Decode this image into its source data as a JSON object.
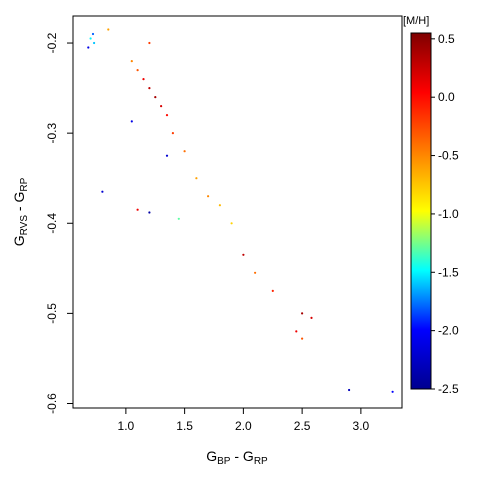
{
  "chart_data": {
    "type": "scatter",
    "xlabel": {
      "main": "G",
      "sub1": "BP",
      "mid": " - G",
      "sub2": "RP"
    },
    "ylabel": {
      "main": "G",
      "sub1": "RVS",
      "mid": " - G",
      "sub2": "RP"
    },
    "xlim": [
      0.55,
      3.35
    ],
    "ylim": [
      -0.605,
      -0.17
    ],
    "xticks": [
      1.0,
      1.5,
      2.0,
      2.5,
      3.0
    ],
    "xtick_labels": [
      "1.0",
      "1.5",
      "2.0",
      "2.5",
      "3.0"
    ],
    "yticks": [
      -0.6,
      -0.5,
      -0.4,
      -0.3,
      -0.2
    ],
    "ytick_labels": [
      "-0.6",
      "-0.5",
      "-0.4",
      "-0.3",
      "-0.2"
    ],
    "colorbar": {
      "title": "[M/H]",
      "min": -2.5,
      "max": 0.55,
      "ticks": [
        0.5,
        0.0,
        -0.5,
        -1.0,
        -1.5,
        -2.0,
        -2.5
      ],
      "tick_labels": [
        "0.5",
        "0.0",
        "-0.5",
        "-1.0",
        "-1.5",
        "-2.0",
        "-2.5"
      ],
      "colormap": [
        "#00008f",
        "#0000ff",
        "#00ffff",
        "#ffff00",
        "#ff7f00",
        "#ff0000",
        "#7f0000"
      ]
    },
    "grid": false,
    "points": [
      [
        1.2,
        -0.25,
        0.3
      ],
      [
        1.15,
        -0.24,
        0.1
      ],
      [
        1.25,
        -0.26,
        0.4
      ],
      [
        1.1,
        -0.23,
        -0.3
      ],
      [
        1.3,
        -0.27,
        0.2
      ],
      [
        1.05,
        -0.22,
        -0.5
      ],
      [
        1.35,
        -0.28,
        0.0
      ],
      [
        1.4,
        -0.3,
        -0.2
      ],
      [
        1.5,
        -0.32,
        -0.4
      ],
      [
        1.6,
        -0.35,
        -0.6
      ],
      [
        1.7,
        -0.37,
        -0.5
      ],
      [
        1.8,
        -0.38,
        -0.7
      ],
      [
        1.9,
        -0.4,
        -0.8
      ],
      [
        2.0,
        -0.435,
        0.3
      ],
      [
        2.1,
        -0.455,
        -0.4
      ],
      [
        2.25,
        -0.475,
        -0.1
      ],
      [
        2.5,
        -0.5,
        0.4
      ],
      [
        2.5,
        -0.528,
        -0.3
      ],
      [
        2.58,
        -0.505,
        0.2
      ],
      [
        2.45,
        -0.52,
        0.1
      ],
      [
        2.9,
        -0.585,
        -2.3
      ],
      [
        3.27,
        -0.587,
        -2.0
      ],
      [
        0.8,
        -0.365,
        -2.2
      ],
      [
        1.2,
        -0.388,
        -2.4
      ],
      [
        1.1,
        -0.385,
        0.1
      ],
      [
        1.05,
        -0.287,
        -2.1
      ],
      [
        1.35,
        -0.325,
        -2.2
      ],
      [
        0.73,
        -0.2,
        -1.6
      ],
      [
        0.7,
        -0.195,
        -1.5
      ],
      [
        0.68,
        -0.205,
        -2.1
      ],
      [
        0.85,
        -0.185,
        -0.6
      ],
      [
        1.2,
        -0.2,
        -0.2
      ],
      [
        0.72,
        -0.19,
        -1.8
      ],
      [
        1.45,
        -0.395,
        -1.3
      ]
    ]
  }
}
